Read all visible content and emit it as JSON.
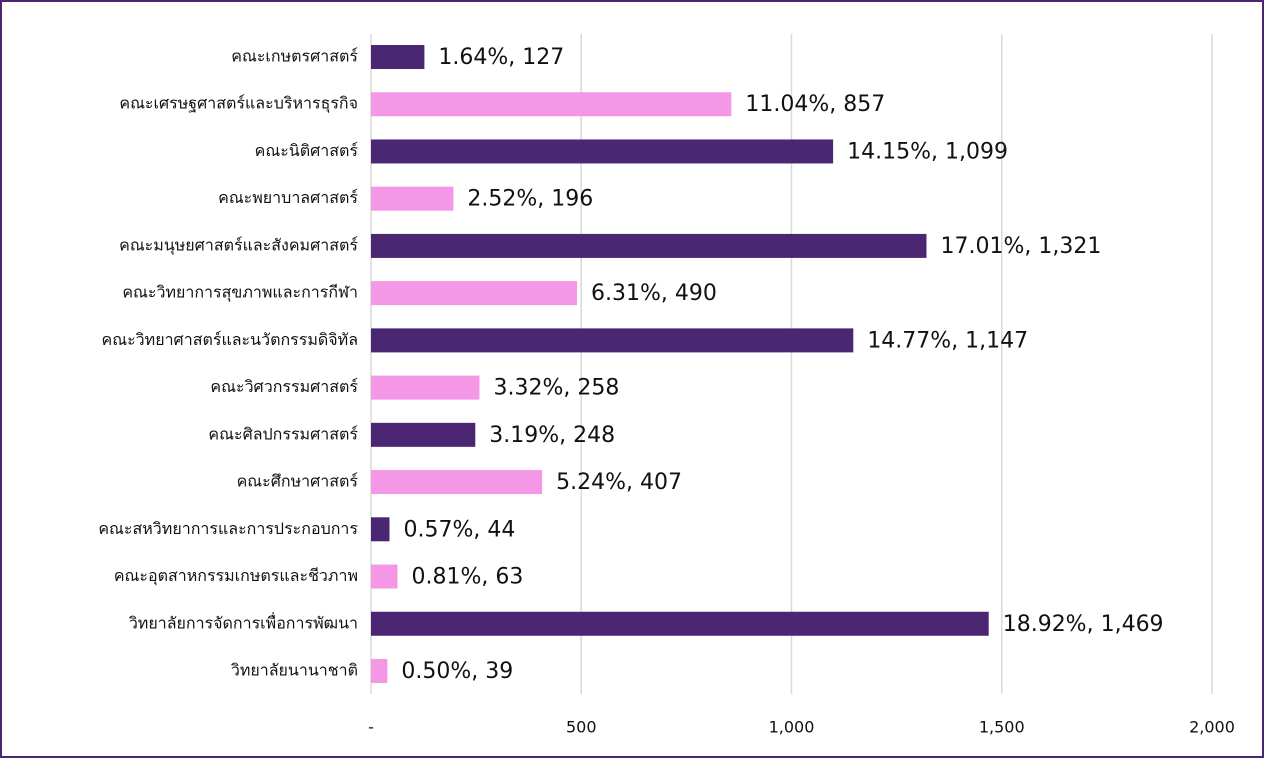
{
  "chart_data": {
    "type": "barh",
    "categories": [
      "คณะเกษตรศาสตร์",
      "คณะเศรษฐศาสตร์และบริหารธุรกิจ",
      "คณะนิติศาสตร์",
      "คณะพยาบาลศาสตร์",
      "คณะมนุษยศาสตร์และสังคมศาสตร์",
      "คณะวิทยาการสุขภาพและการกีฬา",
      "คณะวิทยาศาสตร์และนวัตกรรมดิจิทัล",
      "คณะวิศวกรรมศาสตร์",
      "คณะศิลปกรรมศาสตร์",
      "คณะศึกษาศาสตร์",
      "คณะสหวิทยาการและการประกอบการ",
      "คณะอุตสาหกรรมเกษตรและชีวภาพ",
      "วิทยาลัยการจัดการเพื่อการพัฒนา",
      "วิทยาลัยนานาชาติ"
    ],
    "values": [
      127,
      857,
      1099,
      196,
      1321,
      490,
      1147,
      258,
      248,
      407,
      44,
      63,
      1469,
      39
    ],
    "value_labels": [
      "1.64%,  127",
      "11.04%,  857",
      "14.15%,  1,099",
      "2.52%,  196",
      "17.01%,  1,321",
      "6.31%,  490",
      "14.77%,  1,147",
      "3.32%,  258",
      "3.19%,  248",
      "5.24%,  407",
      "0.57%,  44",
      "0.81%,  63",
      "18.92%,  1,469",
      "0.50%,  39"
    ],
    "colors": [
      "#4b2672",
      "#f397e6",
      "#4b2672",
      "#f397e6",
      "#4b2672",
      "#f397e6",
      "#4b2672",
      "#f397e6",
      "#4b2672",
      "#f397e6",
      "#4b2672",
      "#f397e6",
      "#4b2672",
      "#f397e6"
    ],
    "xlim": [
      0,
      2000
    ],
    "xticks": [
      {
        "value": 0,
        "label": "-"
      },
      500,
      {
        "value": 1000,
        "label": "1,000"
      },
      {
        "value": 1500,
        "label": "1,500"
      },
      {
        "value": 2000,
        "label": "2,000"
      }
    ],
    "grid": true
  }
}
